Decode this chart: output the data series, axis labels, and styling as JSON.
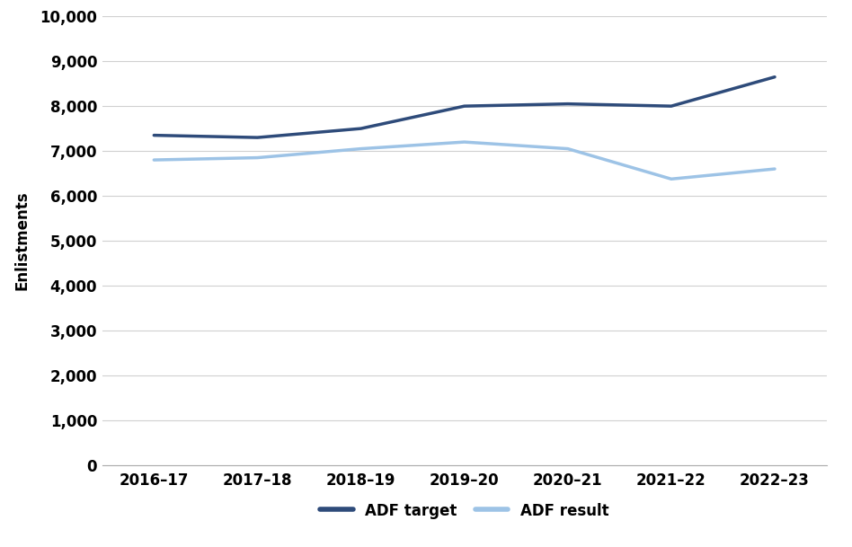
{
  "categories": [
    "2016–17",
    "2017–18",
    "2018–19",
    "2019–20",
    "2020–21",
    "2021–22",
    "2022–23"
  ],
  "adf_target": [
    7350,
    7300,
    7500,
    8000,
    8050,
    8000,
    8650
  ],
  "adf_result": [
    6800,
    6850,
    7050,
    7200,
    7050,
    6375,
    6600
  ],
  "target_color": "#2E4B7A",
  "result_color": "#9DC3E6",
  "ylabel": "Enlistments",
  "ylim": [
    0,
    10000
  ],
  "yticks": [
    0,
    1000,
    2000,
    3000,
    4000,
    5000,
    6000,
    7000,
    8000,
    9000,
    10000
  ],
  "legend_labels": [
    "ADF target",
    "ADF result"
  ],
  "line_width": 2.5,
  "background_color": "#FFFFFF",
  "grid_color": "#D0D0D0"
}
